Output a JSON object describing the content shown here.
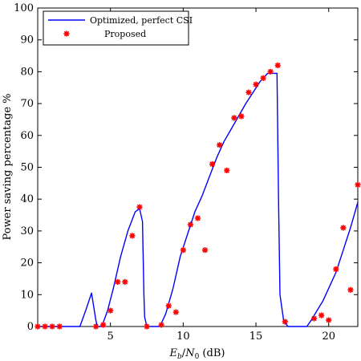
{
  "chart_data": {
    "type": "line",
    "xlabel": "E_b/N_0 (dB)",
    "ylabel": "Power saving percentage %",
    "xlim": [
      0,
      22
    ],
    "ylim": [
      0,
      100
    ],
    "xticks": [
      5,
      10,
      15,
      20
    ],
    "yticks": [
      0,
      10,
      20,
      30,
      40,
      50,
      60,
      70,
      80,
      90,
      100
    ],
    "grid": false,
    "legend_position": "top-left",
    "series": [
      {
        "name": "Optimized, perfect CSI",
        "style": "line",
        "color": "#0000ff",
        "x": [
          0,
          2.9,
          3.3,
          3.7,
          4.0,
          4.1,
          4.2,
          4.4,
          4.8,
          5.2,
          5.7,
          6.2,
          6.7,
          7.0,
          7.2,
          7.3,
          7.35,
          7.5,
          7.8,
          8.4,
          8.8,
          9.3,
          9.8,
          10.3,
          10.8,
          11.3,
          11.8,
          12.3,
          12.8,
          13.3,
          13.8,
          14.3,
          14.8,
          15.3,
          15.8,
          16.1,
          16.45,
          16.55,
          16.65,
          16.9,
          17.2,
          18.2,
          18.5,
          18.8,
          19.2,
          19.6,
          20.0,
          20.5,
          21.0,
          21.5,
          22.0
        ],
        "y": [
          0,
          0,
          5,
          10.5,
          2,
          0,
          0,
          0,
          5,
          12,
          22,
          30,
          36,
          37,
          33,
          10,
          3,
          0,
          0,
          0,
          4,
          12,
          22,
          29,
          36,
          41,
          47,
          53,
          58,
          62,
          66,
          70,
          73.5,
          77,
          79.5,
          79.5,
          79.5,
          40,
          10,
          2,
          0,
          0,
          0,
          2,
          5,
          8,
          12,
          17,
          24,
          31,
          39
        ]
      },
      {
        "name": "Proposed",
        "style": "marker",
        "color": "#ff0000",
        "x": [
          0,
          0.5,
          1.0,
          1.5,
          4.0,
          4.5,
          5.0,
          5.5,
          6.0,
          6.5,
          7.0,
          7.5,
          8.5,
          9.0,
          9.5,
          10.0,
          10.5,
          11.0,
          11.5,
          12.0,
          12.5,
          13.0,
          13.5,
          14.0,
          14.5,
          15.0,
          15.5,
          16.0,
          16.5,
          17.0,
          19.0,
          19.5,
          20.0,
          20.5,
          21.0,
          21.5,
          22.0
        ],
        "y": [
          0,
          0,
          0,
          0,
          0,
          0.5,
          5,
          14,
          14,
          28.5,
          37.5,
          0,
          0.5,
          6.5,
          4.5,
          24,
          32,
          34,
          24,
          51,
          57,
          49,
          65.5,
          66,
          73.5,
          76,
          78,
          80,
          82,
          1.5,
          2.5,
          3.5,
          2,
          18,
          31,
          11.5,
          44.5
        ]
      }
    ]
  }
}
